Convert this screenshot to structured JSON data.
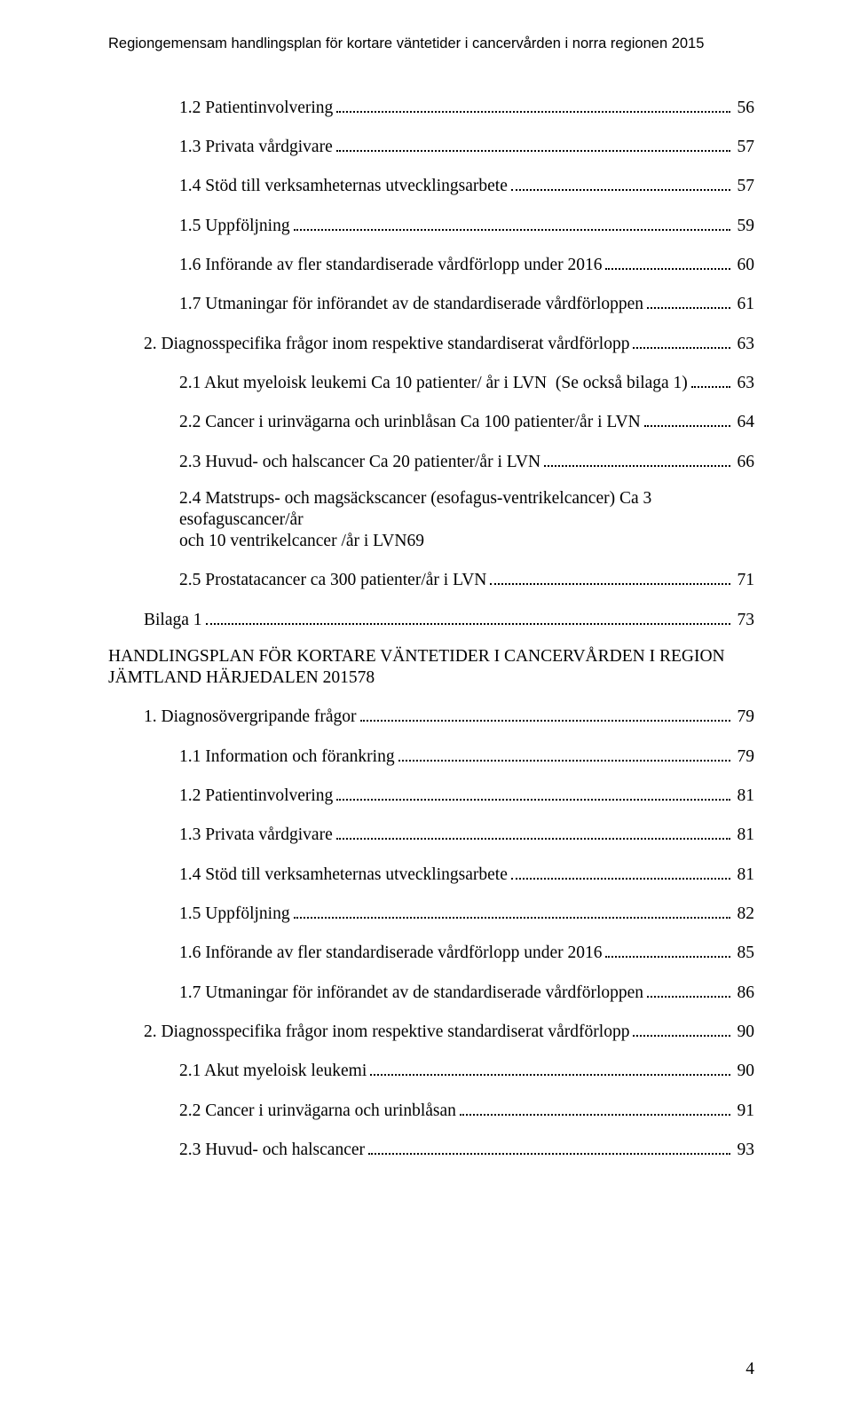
{
  "header": "Regiongemensam handlingsplan för kortare väntetider i cancervården i norra regionen 2015",
  "entries": [
    {
      "indent": 2,
      "label": "1.2 Patientinvolvering",
      "page": "56"
    },
    {
      "indent": 2,
      "label": "1.3 Privata vårdgivare",
      "page": "57"
    },
    {
      "indent": 2,
      "label": "1.4 Stöd till verksamheternas utvecklingsarbete",
      "page": "57"
    },
    {
      "indent": 2,
      "label": "1.5 Uppföljning",
      "page": "59"
    },
    {
      "indent": 2,
      "label": "1.6 Införande av fler standardiserade vårdförlopp under 2016",
      "page": "60"
    },
    {
      "indent": 2,
      "label": "1.7 Utmaningar för införandet av de standardiserade vårdförloppen",
      "page": "61"
    },
    {
      "indent": 1,
      "label": "2. Diagnosspecifika frågor inom respektive standardiserat vårdförlopp",
      "page": "63"
    },
    {
      "indent": 2,
      "label": "2.1 Akut myeloisk leukemi Ca 10 patienter/ år i LVN  (Se också bilaga 1)",
      "page": "63"
    },
    {
      "indent": 2,
      "label": "2.2 Cancer i urinvägarna och urinblåsan Ca 100 patienter/år i LVN",
      "page": "64"
    },
    {
      "indent": 2,
      "label": "2.3 Huvud- och halscancer Ca 20 patienter/år i LVN",
      "page": "66"
    },
    {
      "indent": 2,
      "multiline": true,
      "line1": "2.4 Matstrups- och magsäckscancer (esofagus-ventrikelcancer) Ca 3 esofaguscancer/år",
      "line2": "och 10 ventrikelcancer /år i LVN",
      "page": "69"
    },
    {
      "indent": 2,
      "label": "2.5 Prostatacancer ca 300 patienter/år i LVN",
      "page": "71"
    },
    {
      "indent": 1,
      "label": "Bilaga 1",
      "page": "73"
    },
    {
      "indent": 0,
      "multiline": true,
      "line1": "HANDLINGSPLAN FÖR KORTARE VÄNTETIDER I CANCERVÅRDEN I REGION",
      "line2": "JÄMTLAND HÄRJEDALEN 2015",
      "page": "78"
    },
    {
      "indent": 1,
      "label": "1. Diagnosövergripande frågor",
      "page": "79"
    },
    {
      "indent": 2,
      "label": "1.1 Information och förankring",
      "page": "79"
    },
    {
      "indent": 2,
      "label": "1.2 Patientinvolvering",
      "page": "81"
    },
    {
      "indent": 2,
      "label": "1.3 Privata vårdgivare",
      "page": "81"
    },
    {
      "indent": 2,
      "label": "1.4 Stöd till verksamheternas utvecklingsarbete",
      "page": "81"
    },
    {
      "indent": 2,
      "label": "1.5 Uppföljning",
      "page": "82"
    },
    {
      "indent": 2,
      "label": "1.6 Införande av fler standardiserade vårdförlopp under 2016",
      "page": "85"
    },
    {
      "indent": 2,
      "label": "1.7 Utmaningar för införandet av de standardiserade vårdförloppen",
      "page": "86"
    },
    {
      "indent": 1,
      "label": "2. Diagnosspecifika frågor inom respektive standardiserat vårdförlopp",
      "page": "90"
    },
    {
      "indent": 2,
      "label": "2.1 Akut myeloisk leukemi",
      "page": "90"
    },
    {
      "indent": 2,
      "label": "2.2 Cancer i urinvägarna och urinblåsan",
      "page": "91"
    },
    {
      "indent": 2,
      "label": "2.3 Huvud- och halscancer",
      "page": "93"
    }
  ],
  "page_number": "4"
}
